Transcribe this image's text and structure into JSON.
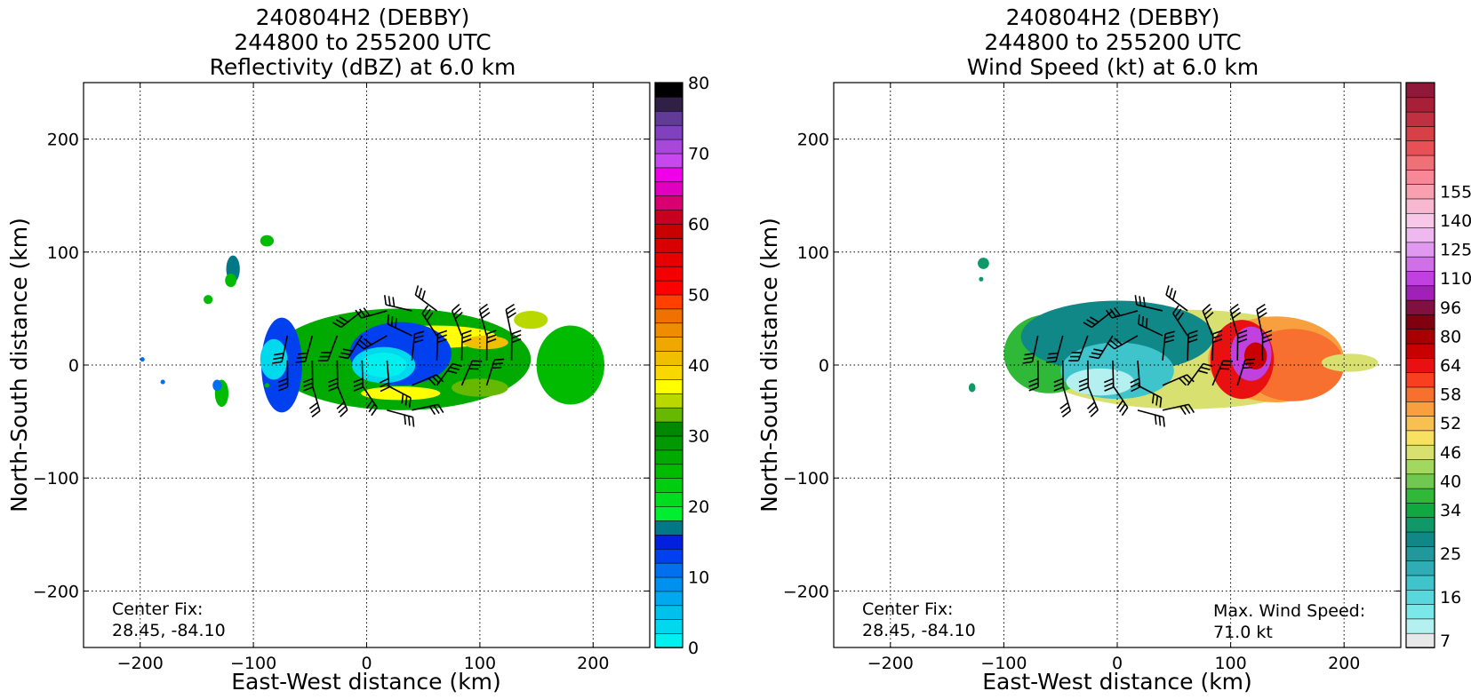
{
  "chart_data": [
    {
      "type": "heatmap",
      "title": [
        "240804H2 (DEBBY)",
        "244800 to 255200 UTC",
        "Reflectivity (dBZ) at 6.0 km"
      ],
      "xlabel": "East-West distance (km)",
      "ylabel": "North-South distance (km)",
      "xlim": [
        -250,
        250
      ],
      "ylim": [
        -250,
        250
      ],
      "xticks": [
        -200,
        -100,
        0,
        100,
        200
      ],
      "yticks": [
        -200,
        -100,
        0,
        100,
        200
      ],
      "grid": true,
      "annotations": {
        "center_fix_label": "Center Fix:",
        "center_fix_value": "28.45, -84.10"
      },
      "colorbar": {
        "min": 0,
        "max": 80,
        "ticks": [
          0,
          10,
          20,
          30,
          40,
          50,
          60,
          70,
          80
        ],
        "colors": [
          "#00f0f0",
          "#00d8ee",
          "#00c0ee",
          "#00a8ee",
          "#0090ee",
          "#0070ee",
          "#0040ee",
          "#0020dd",
          "#007888",
          "#00ee30",
          "#00dd20",
          "#00cc10",
          "#00bb00",
          "#00aa00",
          "#009900",
          "#008800",
          "#66b800",
          "#b8d800",
          "#ffff00",
          "#f8d800",
          "#f0c000",
          "#f0a800",
          "#f08c00",
          "#f07000",
          "#ff4000",
          "#ff0000",
          "#f40000",
          "#e80000",
          "#d80000",
          "#c80000",
          "#c80020",
          "#d80070",
          "#e000c0",
          "#f000e8",
          "#c848f0",
          "#a848d8",
          "#8040c0",
          "#603c98",
          "#302048",
          "#000000"
        ]
      },
      "echo_regions": [
        {
          "cx": 30,
          "cy": 5,
          "rx": 115,
          "ry": 45,
          "value": 26
        },
        {
          "cx": 180,
          "cy": 0,
          "rx": 30,
          "ry": 35,
          "value": 24
        },
        {
          "cx": -75,
          "cy": 0,
          "rx": 18,
          "ry": 42,
          "value": 12
        },
        {
          "cx": -82,
          "cy": 5,
          "rx": 12,
          "ry": 18,
          "value": 3
        },
        {
          "cx": 60,
          "cy": 25,
          "rx": 55,
          "ry": 10,
          "value": 36
        },
        {
          "cx": 105,
          "cy": 20,
          "rx": 20,
          "ry": 6,
          "value": 40
        },
        {
          "cx": 145,
          "cy": 40,
          "rx": 15,
          "ry": 8,
          "value": 35
        },
        {
          "cx": 100,
          "cy": -20,
          "rx": 25,
          "ry": 8,
          "value": 33
        },
        {
          "cx": 30,
          "cy": -25,
          "rx": 35,
          "ry": 6,
          "value": 36
        },
        {
          "cx": 30,
          "cy": 10,
          "rx": 45,
          "ry": 28,
          "value": 12
        },
        {
          "cx": 15,
          "cy": 0,
          "rx": 28,
          "ry": 16,
          "value": 2
        },
        {
          "cx": 15,
          "cy": 0,
          "rx": 20,
          "ry": 11,
          "value": 0
        },
        {
          "cx": -88,
          "cy": 110,
          "rx": 6,
          "ry": 5,
          "value": 24
        },
        {
          "cx": -118,
          "cy": 85,
          "rx": 6,
          "ry": 12,
          "value": 16
        },
        {
          "cx": -120,
          "cy": 75,
          "rx": 5,
          "ry": 6,
          "value": 24
        },
        {
          "cx": -140,
          "cy": 58,
          "rx": 4,
          "ry": 4,
          "value": 24
        },
        {
          "cx": -128,
          "cy": -25,
          "rx": 6,
          "ry": 12,
          "value": 24
        },
        {
          "cx": -132,
          "cy": -18,
          "rx": 4,
          "ry": 5,
          "value": 10
        },
        {
          "cx": -198,
          "cy": 5,
          "rx": 2,
          "ry": 2,
          "value": 10
        },
        {
          "cx": -180,
          "cy": -15,
          "rx": 2,
          "ry": 2,
          "value": 10
        },
        {
          "cx": -88,
          "cy": -18,
          "rx": 2,
          "ry": 2,
          "value": 24
        }
      ]
    },
    {
      "type": "heatmap",
      "title": [
        "240804H2 (DEBBY)",
        "244800 to 255200 UTC",
        "Wind Speed (kt) at 6.0 km"
      ],
      "xlabel": "East-West distance (km)",
      "ylabel": "North-South distance (km)",
      "xlim": [
        -250,
        250
      ],
      "ylim": [
        -250,
        250
      ],
      "xticks": [
        -200,
        -100,
        0,
        100,
        200
      ],
      "yticks": [
        -200,
        -100,
        0,
        100,
        200
      ],
      "grid": true,
      "annotations": {
        "center_fix_label": "Center Fix:",
        "center_fix_value": "28.45, -84.10",
        "max_wind_label": "Max. Wind Speed:",
        "max_wind_value": "71.0 kt"
      },
      "colorbar": {
        "tick_labels": [
          "7",
          "16",
          "25",
          "34",
          "40",
          "46",
          "52",
          "58",
          "64",
          "80",
          "96",
          "110",
          "125",
          "140",
          "155"
        ],
        "tick_levels": [
          0,
          3,
          6,
          9,
          11,
          13,
          15,
          17,
          19,
          21,
          23,
          25,
          27,
          29,
          31
        ],
        "colors": [
          "#e8e8e8",
          "#b4f0f0",
          "#78e8e8",
          "#58d8dc",
          "#40c4cc",
          "#30acb4",
          "#20989c",
          "#108888",
          "#109868",
          "#10a840",
          "#30b838",
          "#70c850",
          "#a0d860",
          "#d8e070",
          "#f8e060",
          "#f8c050",
          "#f8a040",
          "#f87030",
          "#f84020",
          "#e81010",
          "#c80000",
          "#a80000",
          "#800010",
          "#801040",
          "#a020b8",
          "#c040e0",
          "#d070e8",
          "#e098f0",
          "#f0b8f0",
          "#f8c8e8",
          "#f8b8d0",
          "#f8a0b0",
          "#f88898",
          "#f07078",
          "#e85058",
          "#d84048",
          "#c03040",
          "#a82038",
          "#901838"
        ]
      },
      "echo_regions": [
        {
          "cx": 60,
          "cy": 5,
          "rx": 140,
          "ry": 44,
          "value": 13
        },
        {
          "cx": -60,
          "cy": 10,
          "rx": 40,
          "ry": 35,
          "value": 10
        },
        {
          "cx": 0,
          "cy": 25,
          "rx": 85,
          "ry": 32,
          "value": 7
        },
        {
          "cx": 0,
          "cy": -5,
          "rx": 50,
          "ry": 25,
          "value": 4
        },
        {
          "cx": -15,
          "cy": -15,
          "rx": 30,
          "ry": 12,
          "value": 1
        },
        {
          "cx": 140,
          "cy": 5,
          "rx": 60,
          "ry": 38,
          "value": 16
        },
        {
          "cx": 155,
          "cy": 0,
          "rx": 45,
          "ry": 32,
          "value": 17
        },
        {
          "cx": 110,
          "cy": 5,
          "rx": 28,
          "ry": 35,
          "value": 19
        },
        {
          "cx": 118,
          "cy": 10,
          "rx": 18,
          "ry": 24,
          "value": 25
        },
        {
          "cx": 122,
          "cy": 8,
          "rx": 10,
          "ry": 12,
          "value": 20
        },
        {
          "cx": 205,
          "cy": 2,
          "rx": 25,
          "ry": 8,
          "value": 13
        },
        {
          "cx": -118,
          "cy": 90,
          "rx": 5,
          "ry": 5,
          "value": 8
        },
        {
          "cx": -120,
          "cy": 76,
          "rx": 2,
          "ry": 2,
          "value": 8
        },
        {
          "cx": -128,
          "cy": -20,
          "rx": 3,
          "ry": 4,
          "value": 8
        }
      ]
    }
  ]
}
